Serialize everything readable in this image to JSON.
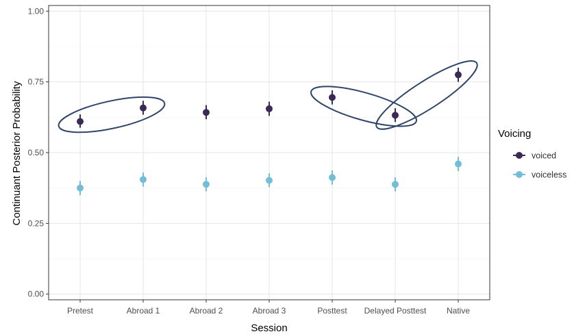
{
  "chart_data": {
    "type": "scatter",
    "xlabel": "Session",
    "ylabel": "Continuant Posterior Probability",
    "categories": [
      "Pretest",
      "Abroad 1",
      "Abroad 2",
      "Abroad 3",
      "Posttest",
      "Delayed Posttest",
      "Native"
    ],
    "ylim": [
      -0.02,
      1.02
    ],
    "y_ticks": [
      "0.00",
      "0.25",
      "0.50",
      "0.75",
      "1.00"
    ],
    "grid": true,
    "legend": {
      "title": "Voicing",
      "position": "right"
    },
    "series": [
      {
        "name": "voiced",
        "color": "#3b2a58",
        "values": [
          0.61,
          0.658,
          0.642,
          0.655,
          0.695,
          0.632,
          0.775
        ],
        "lower": [
          0.588,
          0.634,
          0.618,
          0.63,
          0.67,
          0.608,
          0.75
        ],
        "upper": [
          0.635,
          0.683,
          0.668,
          0.68,
          0.72,
          0.657,
          0.8
        ]
      },
      {
        "name": "voiceless",
        "color": "#74bdd6",
        "values": [
          0.375,
          0.405,
          0.388,
          0.402,
          0.412,
          0.388,
          0.46
        ],
        "lower": [
          0.35,
          0.38,
          0.363,
          0.378,
          0.387,
          0.363,
          0.435
        ],
        "upper": [
          0.4,
          0.43,
          0.413,
          0.427,
          0.437,
          0.413,
          0.485
        ]
      }
    ],
    "annotations": [
      {
        "type": "ellipse",
        "spans": [
          "Pretest",
          "Abroad 1"
        ],
        "series": "voiced"
      },
      {
        "type": "ellipse",
        "spans": [
          "Posttest",
          "Delayed Posttest"
        ],
        "series": "voiced"
      },
      {
        "type": "ellipse",
        "spans": [
          "Delayed Posttest",
          "Native"
        ],
        "series": "voiced"
      }
    ],
    "annotation_color": "#2e4468"
  }
}
